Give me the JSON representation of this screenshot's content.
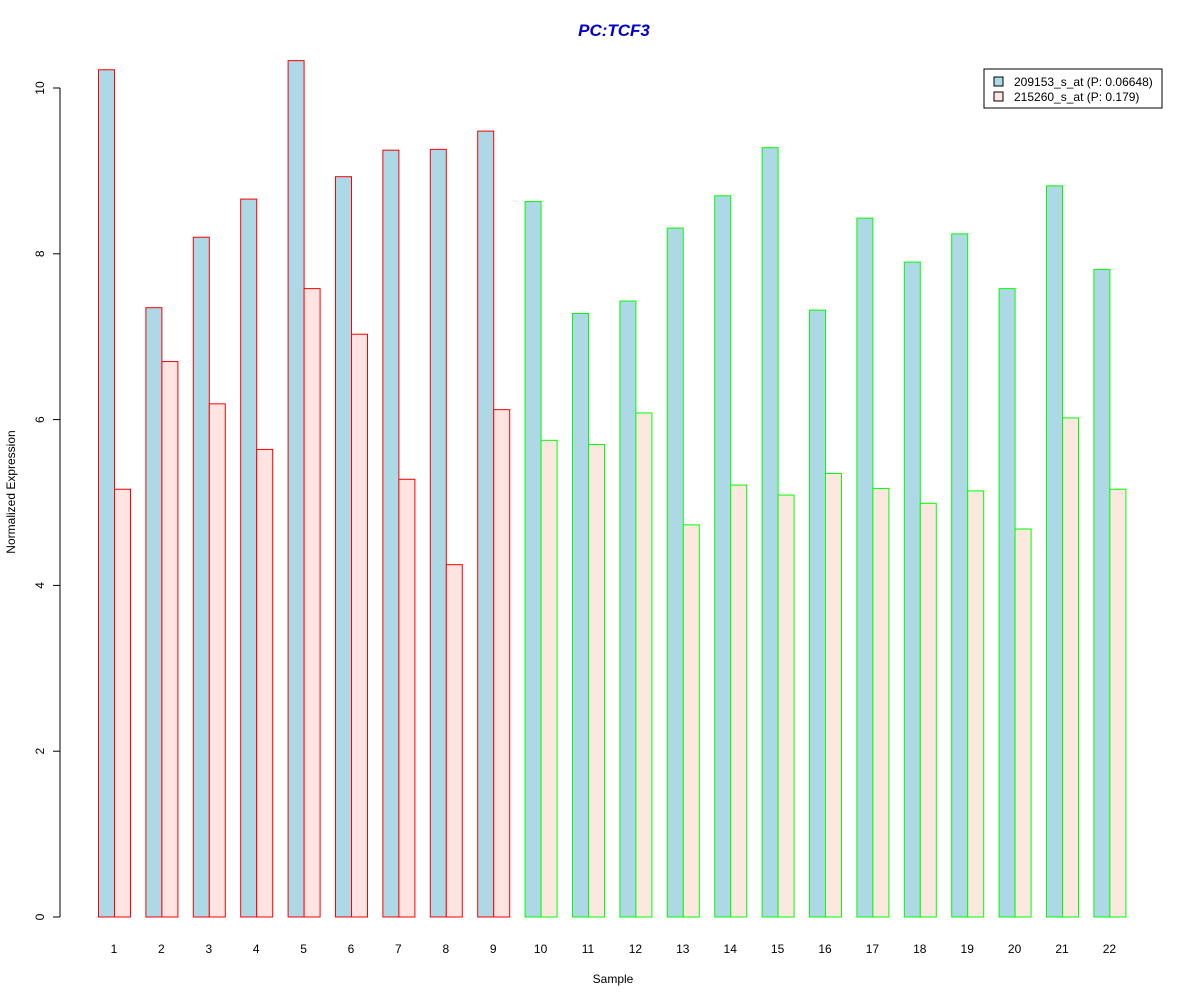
{
  "chart_data": {
    "type": "bar",
    "title": "PC:TCF3",
    "xlabel": "Sample",
    "ylabel": "Normalized Expression",
    "ylim": [
      0,
      10.5
    ],
    "yticks": [
      0,
      2,
      4,
      6,
      8,
      10
    ],
    "grid": false,
    "legend_position": "top-right",
    "categories": [
      "1",
      "2",
      "3",
      "4",
      "5",
      "6",
      "7",
      "8",
      "9",
      "10",
      "11",
      "12",
      "13",
      "14",
      "15",
      "16",
      "17",
      "18",
      "19",
      "20",
      "21",
      "22"
    ],
    "series": [
      {
        "name": "209153_s_at (P: 0.06648)",
        "fill": "#ADD8E6",
        "values": [
          10.22,
          7.35,
          8.2,
          8.66,
          10.33,
          8.93,
          9.25,
          9.26,
          9.48,
          8.63,
          7.28,
          7.43,
          8.31,
          8.7,
          9.28,
          7.32,
          8.43,
          7.9,
          8.24,
          7.58,
          8.82,
          7.81
        ]
      },
      {
        "name": "215260_s_at (P: 0.179)",
        "fill": "#FFE4E1",
        "fill_alt": "#FBE9E0",
        "values": [
          5.16,
          6.7,
          6.19,
          5.64,
          7.58,
          7.03,
          5.28,
          4.25,
          6.12,
          5.75,
          5.7,
          6.08,
          4.73,
          5.21,
          5.09,
          5.35,
          5.17,
          4.99,
          5.14,
          4.68,
          6.02,
          5.16
        ]
      }
    ],
    "group_border_colors": [
      "#FF0000",
      "#FF0000",
      "#FF0000",
      "#FF0000",
      "#FF0000",
      "#FF0000",
      "#FF0000",
      "#FF0000",
      "#FF0000",
      "#00FF00",
      "#00FF00",
      "#00FF00",
      "#00FF00",
      "#00FF00",
      "#00FF00",
      "#00FF00",
      "#00FF00",
      "#00FF00",
      "#00FF00",
      "#00FF00",
      "#00FF00",
      "#00FF00"
    ]
  },
  "colors": {
    "title": "#0000CC",
    "axis": "#000000",
    "background": "#FFFFFF"
  }
}
